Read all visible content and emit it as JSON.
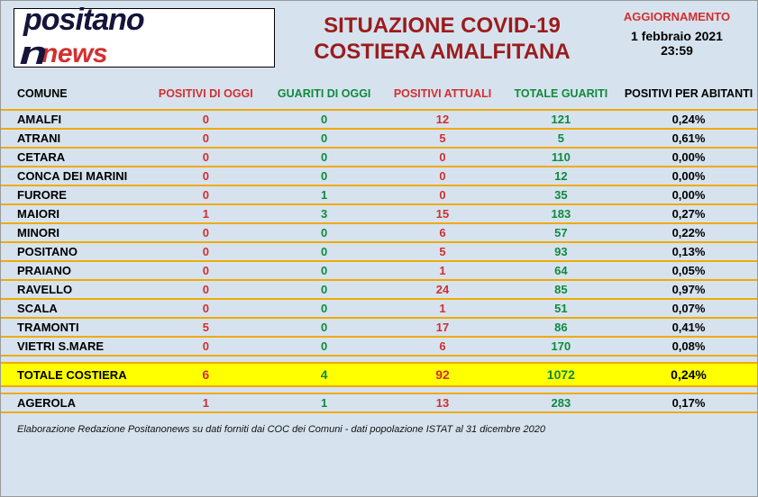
{
  "colors": {
    "panel_bg": "#d6e3ef",
    "row_divider": "#f2a900",
    "red": "#d32f2f",
    "dark_red": "#9b1c1c",
    "green": "#0f8a3c",
    "yellow_hl": "#ffff00",
    "logo_navy": "#14143c"
  },
  "logo": {
    "top": "positano",
    "bottom": "news"
  },
  "title": {
    "line1": "SITUAZIONE COVID-19",
    "line2": "COSTIERA AMALFITANA"
  },
  "update": {
    "label": "AGGIORNAMENTO",
    "date": "1 febbraio 2021",
    "time": "23:59"
  },
  "headers": {
    "comune": "COMUNE",
    "positivi_oggi": "POSITIVI DI OGGI",
    "guariti_oggi": "GUARITI DI OGGI",
    "positivi_attuali": "POSITIVI ATTUALI",
    "totale_guariti": "TOTALE GUARITI",
    "positivi_abitanti": "POSITIVI  PER ABITANTI"
  },
  "rows": [
    {
      "comune": "AMALFI",
      "p_oggi": "0",
      "g_oggi": "0",
      "p_att": "12",
      "t_gua": "121",
      "p_ab": "0,24%"
    },
    {
      "comune": "ATRANI",
      "p_oggi": "0",
      "g_oggi": "0",
      "p_att": "5",
      "t_gua": "5",
      "p_ab": "0,61%"
    },
    {
      "comune": "CETARA",
      "p_oggi": "0",
      "g_oggi": "0",
      "p_att": "0",
      "t_gua": "110",
      "p_ab": "0,00%"
    },
    {
      "comune": "CONCA DEI MARINI",
      "p_oggi": "0",
      "g_oggi": "0",
      "p_att": "0",
      "t_gua": "12",
      "p_ab": "0,00%"
    },
    {
      "comune": "FURORE",
      "p_oggi": "0",
      "g_oggi": "1",
      "p_att": "0",
      "t_gua": "35",
      "p_ab": "0,00%"
    },
    {
      "comune": "MAIORI",
      "p_oggi": "1",
      "g_oggi": "3",
      "p_att": "15",
      "t_gua": "183",
      "p_ab": "0,27%"
    },
    {
      "comune": "MINORI",
      "p_oggi": "0",
      "g_oggi": "0",
      "p_att": "6",
      "t_gua": "57",
      "p_ab": "0,22%"
    },
    {
      "comune": "POSITANO",
      "p_oggi": "0",
      "g_oggi": "0",
      "p_att": "5",
      "t_gua": "93",
      "p_ab": "0,13%"
    },
    {
      "comune": "PRAIANO",
      "p_oggi": "0",
      "g_oggi": "0",
      "p_att": "1",
      "t_gua": "64",
      "p_ab": "0,05%"
    },
    {
      "comune": "RAVELLO",
      "p_oggi": "0",
      "g_oggi": "0",
      "p_att": "24",
      "t_gua": "85",
      "p_ab": "0,97%"
    },
    {
      "comune": "SCALA",
      "p_oggi": "0",
      "g_oggi": "0",
      "p_att": "1",
      "t_gua": "51",
      "p_ab": "0,07%"
    },
    {
      "comune": "TRAMONTI",
      "p_oggi": "5",
      "g_oggi": "0",
      "p_att": "17",
      "t_gua": "86",
      "p_ab": "0,41%"
    },
    {
      "comune": "VIETRI S.MARE",
      "p_oggi": "0",
      "g_oggi": "0",
      "p_att": "6",
      "t_gua": "170",
      "p_ab": "0,08%"
    }
  ],
  "total": {
    "comune": "TOTALE COSTIERA",
    "p_oggi": "6",
    "g_oggi": "4",
    "p_att": "92",
    "t_gua": "1072",
    "p_ab": "0,24%"
  },
  "extra": {
    "comune": "AGEROLA",
    "p_oggi": "1",
    "g_oggi": "1",
    "p_att": "13",
    "t_gua": "283",
    "p_ab": "0,17%"
  },
  "footer": "Elaborazione Redazione Positanonews su dati forniti dai COC dei Comuni - dati popolazione ISTAT al 31 dicembre 2020"
}
